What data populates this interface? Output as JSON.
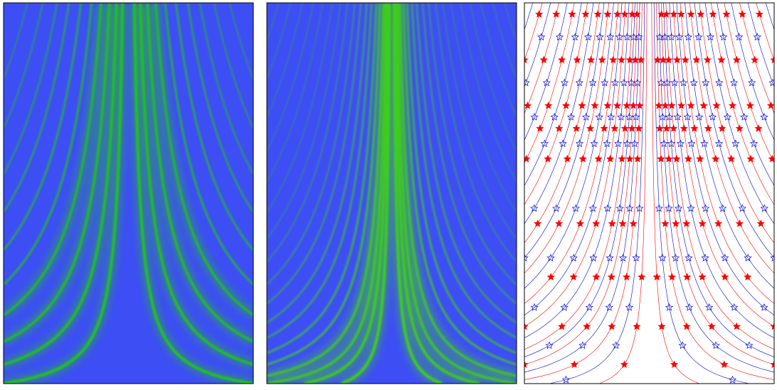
{
  "chart_data": [
    {
      "type": "heatmap",
      "background": "#3d4ef5",
      "color": "#22c41a",
      "xlim": [
        -1,
        1
      ],
      "ylim": [
        0,
        1
      ],
      "curves": [
        0.05,
        0.1,
        0.16,
        0.23,
        0.31,
        0.4,
        0.5,
        0.6,
        0.72,
        0.85
      ]
    },
    {
      "type": "heatmap",
      "background": "#3d4ef5",
      "color": "#3fcf1a",
      "xlim": [
        -1,
        1
      ],
      "ylim": [
        0,
        1
      ],
      "curves": [
        0.02,
        0.035,
        0.05,
        0.07,
        0.1,
        0.13,
        0.17,
        0.21,
        0.26,
        0.31,
        0.37,
        0.43,
        0.5,
        0.58,
        0.66,
        0.75,
        0.85,
        0.95
      ]
    },
    {
      "type": "line",
      "background": "#ffffff",
      "colors": [
        "#ff0000",
        "#0000cc"
      ],
      "xlim": [
        -1,
        1
      ],
      "ylim": [
        0,
        1
      ],
      "curves": [
        0.02,
        0.04,
        0.06,
        0.08,
        0.1,
        0.12,
        0.14,
        0.17,
        0.2,
        0.23,
        0.26,
        0.3,
        0.34,
        0.38,
        0.42,
        0.47,
        0.52,
        0.57,
        0.63,
        0.69,
        0.76,
        0.83,
        0.9,
        0.98
      ],
      "star_y": [
        0.97,
        0.91,
        0.85,
        0.79,
        0.73,
        0.7,
        0.67,
        0.63,
        0.59,
        0.46,
        0.42,
        0.33,
        0.28,
        0.2,
        0.15,
        0.1,
        0.05,
        0.01
      ]
    }
  ]
}
